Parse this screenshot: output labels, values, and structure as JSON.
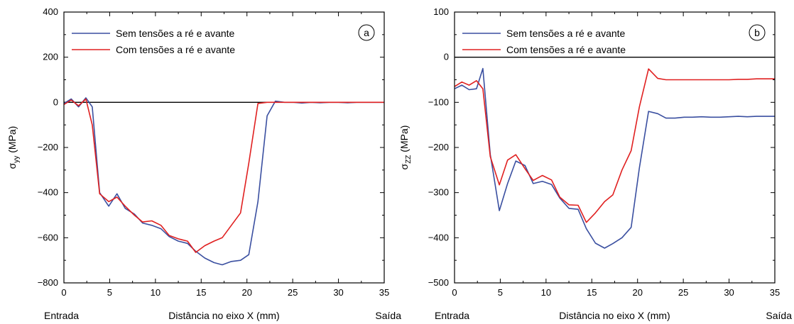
{
  "chart_data": [
    {
      "type": "line",
      "panel_label": "a",
      "ylabel_main": "σ",
      "ylabel_sub": "yy",
      "ylabel_unit": " (MPa)",
      "xlabel": "Distância no eixo X (mm)",
      "x_left_label": "Entrada",
      "x_right_label": "Saída",
      "xlim": [
        0,
        35
      ],
      "ylim": [
        -800,
        400
      ],
      "x_ticks": [
        0,
        5,
        10,
        15,
        20,
        25,
        30,
        35
      ],
      "y_ticks": [
        -800,
        -600,
        -400,
        -200,
        0,
        200,
        400
      ],
      "zero_line": true,
      "legend_position": "top-left",
      "series": [
        {
          "name": "Sem tensões a ré e avante",
          "color": "#3a4fa0",
          "x": [
            0,
            0.8,
            1.6,
            2.4,
            3.1,
            3.9,
            4.9,
            5.8,
            6.7,
            7.7,
            8.6,
            9.6,
            10.6,
            11.5,
            12.5,
            13.5,
            14.4,
            15.4,
            16.4,
            17.3,
            18.3,
            19.3,
            20.2,
            21.2,
            22.2,
            23.1,
            24.1,
            25.1,
            26.0,
            27.0,
            28.0,
            29.0,
            30.0,
            31.0,
            32.0,
            33.0,
            34.0,
            35.0
          ],
          "y": [
            -5,
            15,
            -20,
            20,
            -20,
            -400,
            -460,
            -405,
            -470,
            -495,
            -535,
            -545,
            -560,
            -595,
            -615,
            -625,
            -660,
            -690,
            -710,
            -720,
            -705,
            -700,
            -675,
            -440,
            -60,
            5,
            0,
            0,
            -3,
            0,
            -2,
            0,
            0,
            -2,
            0,
            0,
            0,
            0
          ]
        },
        {
          "name": "Com tensões a ré e avante",
          "color": "#e02020",
          "x": [
            0,
            0.8,
            1.6,
            2.4,
            3.1,
            3.9,
            4.9,
            5.8,
            6.7,
            7.7,
            8.6,
            9.6,
            10.6,
            11.5,
            12.5,
            13.5,
            14.4,
            15.4,
            16.4,
            17.3,
            18.3,
            19.3,
            20.2,
            21.2,
            22.2,
            23.1,
            24.1,
            25.1,
            26.0,
            27.0,
            28.0,
            29.0,
            30.0,
            31.0,
            32.0,
            33.0,
            34.0,
            35.0
          ],
          "y": [
            -10,
            10,
            -15,
            15,
            -100,
            -405,
            -440,
            -420,
            -460,
            -500,
            -530,
            -525,
            -545,
            -590,
            -605,
            -615,
            -665,
            -635,
            -615,
            -600,
            -545,
            -490,
            -270,
            -5,
            0,
            0,
            0,
            0,
            0,
            0,
            0,
            0,
            0,
            0,
            0,
            0,
            0,
            0
          ]
        }
      ]
    },
    {
      "type": "line",
      "panel_label": "b",
      "ylabel_main": "σ",
      "ylabel_sub": "ZZ",
      "ylabel_unit": " (MPa)",
      "xlabel": "Distância no eixo X (mm)",
      "x_left_label": "Entrada",
      "x_right_label": "Saída",
      "xlim": [
        0,
        35
      ],
      "ylim": [
        -500,
        100
      ],
      "x_ticks": [
        0,
        5,
        10,
        15,
        20,
        25,
        30,
        35
      ],
      "y_ticks": [
        -500,
        -400,
        -300,
        -200,
        -100,
        0,
        100
      ],
      "zero_line": true,
      "legend_position": "top-left",
      "series": [
        {
          "name": "Sem tensões a ré e avante",
          "color": "#3a4fa0",
          "x": [
            0,
            0.8,
            1.6,
            2.4,
            3.1,
            3.9,
            4.9,
            5.8,
            6.7,
            7.7,
            8.6,
            9.6,
            10.6,
            11.5,
            12.5,
            13.5,
            14.4,
            15.4,
            16.4,
            17.3,
            18.3,
            19.3,
            20.2,
            21.2,
            22.2,
            23.1,
            24.1,
            25.1,
            26.0,
            27.0,
            28.0,
            29.0,
            30.0,
            31.0,
            32.0,
            33.0,
            34.0,
            35.0
          ],
          "y": [
            -70,
            -62,
            -72,
            -70,
            -25,
            -215,
            -340,
            -280,
            -230,
            -240,
            -280,
            -275,
            -282,
            -312,
            -335,
            -337,
            -380,
            -412,
            -423,
            -413,
            -400,
            -377,
            -245,
            -120,
            -125,
            -135,
            -135,
            -133,
            -133,
            -132,
            -133,
            -133,
            -132,
            -131,
            -132,
            -131,
            -131,
            -131
          ]
        },
        {
          "name": "Com tensões a ré e avante",
          "color": "#e02020",
          "x": [
            0,
            0.8,
            1.6,
            2.4,
            3.1,
            3.9,
            4.9,
            5.8,
            6.7,
            7.7,
            8.6,
            9.6,
            10.6,
            11.5,
            12.5,
            13.5,
            14.4,
            15.4,
            16.4,
            17.3,
            18.3,
            19.3,
            20.2,
            21.2,
            22.2,
            23.1,
            24.1,
            25.1,
            26.0,
            27.0,
            28.0,
            29.0,
            30.0,
            31.0,
            32.0,
            33.0,
            34.0,
            35.0
          ],
          "y": [
            -65,
            -55,
            -62,
            -52,
            -70,
            -220,
            -283,
            -228,
            -216,
            -247,
            -273,
            -262,
            -272,
            -310,
            -327,
            -328,
            -366,
            -345,
            -320,
            -305,
            -250,
            -207,
            -110,
            -26,
            -47,
            -50,
            -50,
            -50,
            -50,
            -50,
            -50,
            -50,
            -50,
            -49,
            -49,
            -48,
            -48,
            -48
          ]
        }
      ]
    }
  ]
}
